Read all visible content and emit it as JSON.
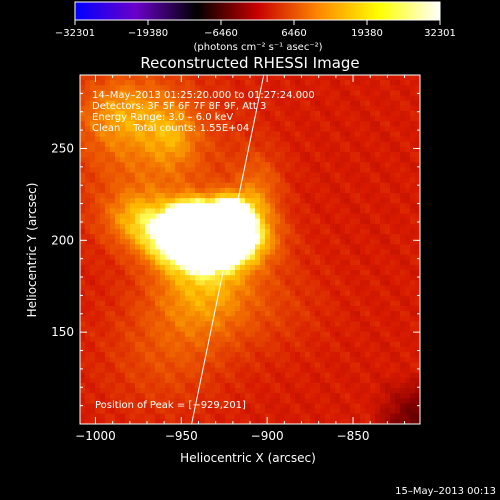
{
  "chart_data": {
    "type": "heatmap",
    "title": "Reconstructed RHESSI Image",
    "xlabel": "Heliocentric X (arcsec)",
    "ylabel": "Heliocentric Y (arcsec)",
    "xlim": [
      -1009,
      -811
    ],
    "ylim": [
      100,
      290
    ],
    "x_ticks": [
      -1000,
      -950,
      -900,
      -850
    ],
    "y_ticks": [
      150,
      200,
      250
    ],
    "x_tick_labels": [
      "−1000",
      "−950",
      "−900",
      "−850"
    ],
    "y_tick_labels": [
      "150",
      "200",
      "250"
    ],
    "colorbar": {
      "min": -32301,
      "max": 32301,
      "ticks": [
        -32301,
        -19380,
        -6460,
        6460,
        19380,
        32301
      ],
      "tick_labels": [
        "−32301",
        "−19380",
        "−6460",
        "6460",
        "19380",
        "32301"
      ],
      "unit_label": "(photons cm⁻² s⁻¹ asec⁻²)",
      "colormap": [
        "#0000ff",
        "#6a00c8",
        "#000000",
        "#c80000",
        "#ff8800",
        "#ffff00",
        "#ffffff"
      ]
    },
    "annotations": {
      "time_range": "14–May–2013 01:25:20.000 to 01:27:24.000",
      "detectors": "Detectors: 3F 5F 6F 7F 8F 9F, Att 3",
      "energy_range": "Energy Range: 3.0 – 6.0 keV",
      "algorithm_counts": "Clean    Total counts: 1.55E+04",
      "peak": "Position of Peak = [−929,201]"
    },
    "peak_position": [
      -929,
      201
    ],
    "limb_line": [
      [
        -944,
        100
      ],
      [
        -902,
        290
      ]
    ],
    "sources": [
      {
        "x": -935,
        "y": 201,
        "sx": 20,
        "sy": 10,
        "amp": 1.0
      },
      {
        "x": -922,
        "y": 215,
        "sx": 9,
        "sy": 7,
        "amp": 0.45
      },
      {
        "x": -945,
        "y": 214,
        "sx": 8,
        "sy": 6,
        "amp": 0.35
      },
      {
        "x": -937,
        "y": 180,
        "sx": 20,
        "sy": 22,
        "amp": 0.28
      },
      {
        "x": -968,
        "y": 248,
        "sx": 32,
        "sy": 30,
        "amp": 0.18
      },
      {
        "x": -985,
        "y": 270,
        "sx": 18,
        "sy": 14,
        "amp": 0.18
      },
      {
        "x": -955,
        "y": 258,
        "sx": 10,
        "sy": 12,
        "amp": 0.14
      },
      {
        "x": -975,
        "y": 212,
        "sx": 14,
        "sy": 10,
        "amp": 0.22
      },
      {
        "x": -905,
        "y": 225,
        "sx": 10,
        "sy": 16,
        "amp": 0.18
      },
      {
        "x": -960,
        "y": 140,
        "sx": 25,
        "sy": 25,
        "amp": 0.12
      },
      {
        "x": -900,
        "y": 165,
        "sx": 25,
        "sy": 20,
        "amp": 0.08
      }
    ],
    "background_level": 0.5,
    "ripple_amplitude": 0.03
  },
  "footer": {
    "date": "15–May–2013 00:13"
  }
}
